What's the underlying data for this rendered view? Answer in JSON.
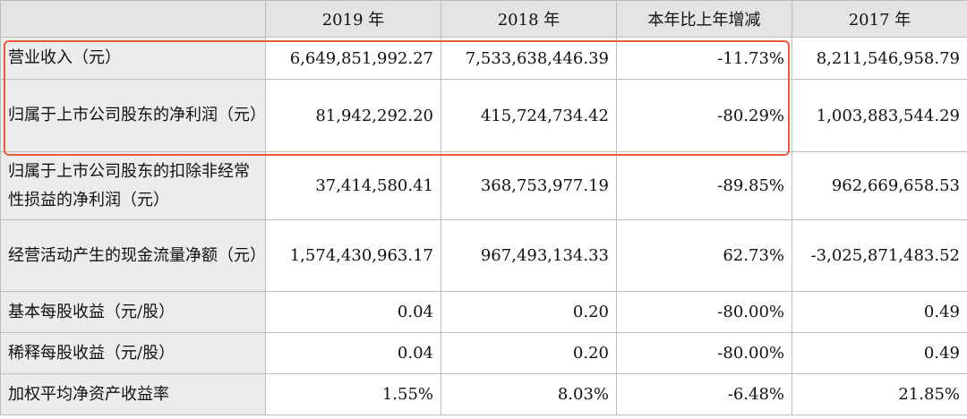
{
  "table": {
    "headers": [
      "",
      "2019 年",
      "2018 年",
      "本年比上年增减",
      "2017 年"
    ],
    "rows": [
      {
        "label": "营业收入（元）",
        "values": [
          "6,649,851,992.27",
          "7,533,638,446.39",
          "-11.73%",
          "8,211,546,958.79"
        ]
      },
      {
        "label": "归属于上市公司股东的净利润（元）",
        "values": [
          "81,942,292.20",
          "415,724,734.42",
          "-80.29%",
          "1,003,883,544.29"
        ]
      },
      {
        "label": "归属于上市公司股东的扣除非经常性损益的净利润（元）",
        "values": [
          "37,414,580.41",
          "368,753,977.19",
          "-89.85%",
          "962,669,658.53"
        ]
      },
      {
        "label": "经营活动产生的现金流量净额（元）",
        "values": [
          "1,574,430,963.17",
          "967,493,134.33",
          "62.73%",
          "-3,025,871,483.52"
        ]
      },
      {
        "label": "基本每股收益（元/股）",
        "values": [
          "0.04",
          "0.20",
          "-80.00%",
          "0.49"
        ]
      },
      {
        "label": "稀释每股收益（元/股）",
        "values": [
          "0.04",
          "0.20",
          "-80.00%",
          "0.49"
        ]
      },
      {
        "label": "加权平均净资产收益率",
        "values": [
          "1.55%",
          "8.03%",
          "-6.48%",
          "21.85%"
        ]
      }
    ]
  },
  "accent": "#ec5a3c"
}
